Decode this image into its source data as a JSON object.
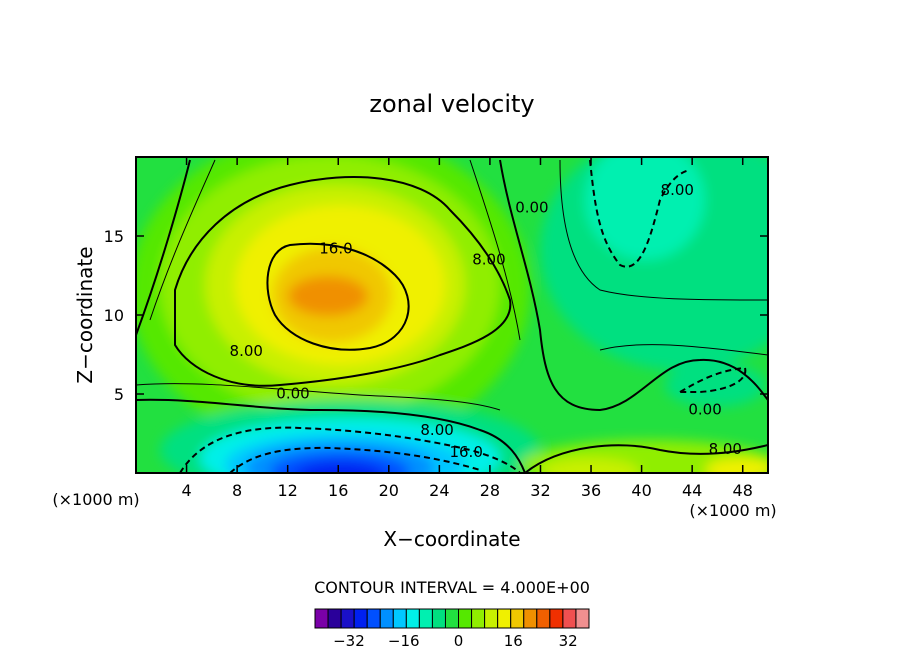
{
  "chart_data": {
    "type": "heatmap",
    "title": "zonal velocity",
    "xlabel": "X−coordinate",
    "ylabel": "Z−coordinate",
    "x_unit_left": "(×1000 m)",
    "x_unit_right": "(×1000 m)",
    "xlim": [
      0,
      50
    ],
    "ylim": [
      0,
      20
    ],
    "xticks": [
      4,
      8,
      12,
      16,
      20,
      24,
      28,
      32,
      36,
      40,
      44,
      48
    ],
    "yticks": [
      5,
      10,
      15
    ],
    "contour_interval_label": "CONTOUR INTERVAL = 4.000E+00",
    "colorbar_ticks": [
      "−32",
      "−16",
      "0",
      "16",
      "32"
    ],
    "colorbar_tick_values": [
      -32,
      -16,
      0,
      16,
      32
    ],
    "colorbar_levels": [
      -40,
      -36,
      -32,
      -28,
      -24,
      -20,
      -16,
      -12,
      -8,
      -4,
      0,
      4,
      8,
      12,
      16,
      20,
      24,
      28,
      32,
      36,
      40
    ],
    "colorbar_colors": [
      "#7a00a8",
      "#2a009a",
      "#1a10c8",
      "#0020f0",
      "#0050ff",
      "#0090ff",
      "#00c8ff",
      "#00f0e8",
      "#00f0b0",
      "#00e080",
      "#22e040",
      "#55e800",
      "#90ee00",
      "#c8f000",
      "#f0f000",
      "#f0c800",
      "#f09000",
      "#f06000",
      "#f03000",
      "#f05050",
      "#f09090"
    ],
    "contour_labels": [
      {
        "text": "16.0",
        "x": 14.5,
        "z": 13.9
      },
      {
        "text": "8.00",
        "x": 26.6,
        "z": 13.2
      },
      {
        "text": "0.00",
        "x": 30.0,
        "z": 16.5
      },
      {
        "text": "8.00",
        "x": 41.5,
        "z": 17.6
      },
      {
        "text": "8.00",
        "x": 7.4,
        "z": 7.4
      },
      {
        "text": "0.00",
        "x": 11.1,
        "z": 4.7
      },
      {
        "text": "8.00",
        "x": 22.5,
        "z": 2.4
      },
      {
        "text": "16.0",
        "x": 24.8,
        "z": 1.0
      },
      {
        "text": "0.00",
        "x": 43.7,
        "z": 3.7
      },
      {
        "text": "8.00",
        "x": 45.3,
        "z": 1.2
      }
    ]
  }
}
